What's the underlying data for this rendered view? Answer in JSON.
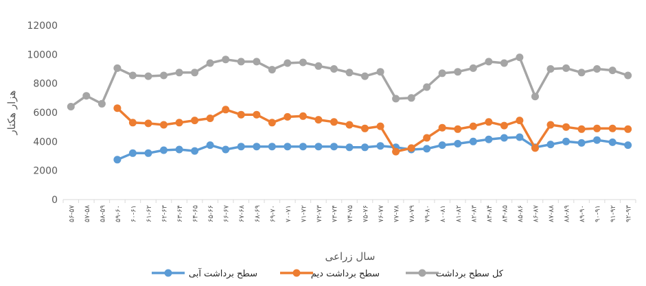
{
  "chart_data": {
    "type": "line",
    "title": "",
    "xlabel": "سال زراعی",
    "ylabel": "هزار هکتار",
    "ylim": [
      0,
      12000
    ],
    "yticks": [
      0,
      2000,
      4000,
      6000,
      8000,
      10000,
      12000
    ],
    "grid": false,
    "legend_position": "bottom",
    "categories": [
      "۵۶-۵۷",
      "۵۷-۵۸",
      "۵۸-۵۹",
      "۵۹-۶۰",
      "۶۰-۶۱",
      "۶۱-۶۲",
      "۶۲-۶۳",
      "۶۳-۶۴",
      "۶۴-۶۵",
      "۶۵-۶۶",
      "۶۶-۶۷",
      "۶۷-۶۸",
      "۶۸-۶۹",
      "۶۹-۷۰",
      "۷۰-۷۱",
      "۷۱-۷۲",
      "۷۲-۷۳",
      "۷۳-۷۴",
      "۷۴-۷۵",
      "۷۵-۷۶",
      "۷۶-۷۷",
      "۷۷-۷۸",
      "۷۸-۷۹",
      "۷۹-۸۰",
      "۸۰-۸۱",
      "۸۱-۸۲",
      "۸۲-۸۳",
      "۸۳-۸۴",
      "۸۴-۸۵",
      "۸۵-۸۶",
      "۸۶-۸۷",
      "۸۷-۸۸",
      "۸۸-۸۹",
      "۸۹-۹۰",
      "۹۰-۹۱",
      "۹۱-۹۲",
      "۹۲-۹۳"
    ],
    "series": [
      {
        "name": "سطح برداشت آبی",
        "color": "#5B9BD5",
        "values": [
          null,
          null,
          null,
          2750,
          3200,
          3200,
          3400,
          3450,
          3350,
          3750,
          3450,
          3650,
          3650,
          3650,
          3650,
          3650,
          3650,
          3650,
          3600,
          3600,
          3700,
          3600,
          3450,
          3500,
          3750,
          3850,
          4000,
          4150,
          4250,
          4300,
          3600,
          3800,
          4000,
          3900,
          4100,
          3950,
          3750
        ]
      },
      {
        "name": "سطح برداشت دیم",
        "color": "#ED7D31",
        "values": [
          null,
          null,
          null,
          6300,
          5300,
          5250,
          5150,
          5300,
          5450,
          5600,
          6200,
          5850,
          5850,
          5300,
          5700,
          5750,
          5500,
          5350,
          5150,
          4900,
          5050,
          3300,
          3550,
          4250,
          4950,
          4850,
          5050,
          5350,
          5100,
          5450,
          3550,
          5150,
          5000,
          4850,
          4900,
          4900,
          4850
        ]
      },
      {
        "name": "کل سطح برداشت",
        "color": "#A5A5A5",
        "values": [
          6400,
          7150,
          6600,
          9050,
          8550,
          8500,
          8550,
          8750,
          8750,
          9400,
          9650,
          9500,
          9500,
          8950,
          9400,
          9450,
          9200,
          9000,
          8750,
          8500,
          8800,
          6950,
          7000,
          7750,
          8700,
          8800,
          9050,
          9500,
          9400,
          9800,
          7100,
          9000,
          9050,
          8750,
          9000,
          8900,
          8550
        ]
      }
    ]
  }
}
